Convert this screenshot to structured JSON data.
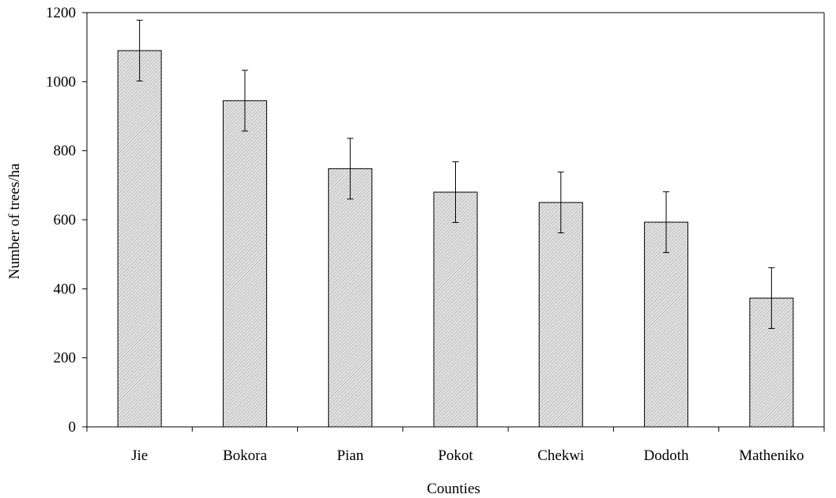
{
  "chart_data": {
    "type": "bar",
    "title": "",
    "xlabel": "Counties",
    "ylabel": "Number of trees/ha",
    "categories": [
      "Jie",
      "Bokora",
      "Pian",
      "Pokot",
      "Chekwi",
      "Dodoth",
      "Matheniko"
    ],
    "values": [
      1090,
      945,
      748,
      680,
      650,
      593,
      373
    ],
    "error": [
      88,
      88,
      88,
      88,
      88,
      88,
      88
    ],
    "ylim": [
      0,
      1200
    ],
    "yticks": [
      0,
      200,
      400,
      600,
      800,
      1000,
      1200
    ],
    "grid": false,
    "legend": "none",
    "bar_fill": "#c8c8c8",
    "bar_stroke": "#000000"
  }
}
